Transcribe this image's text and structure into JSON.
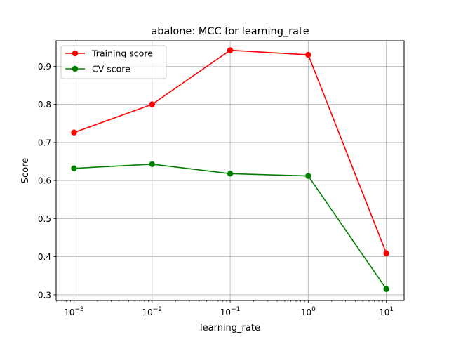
{
  "chart_data": {
    "type": "line",
    "title": "abalone: MCC for learning_rate",
    "xlabel": "learning_rate",
    "ylabel": "Score",
    "x_scale": "log",
    "x": [
      0.001,
      0.01,
      0.1,
      1,
      10
    ],
    "x_tick_labels": [
      {
        "base": "10",
        "exp": "−3"
      },
      {
        "base": "10",
        "exp": "−2"
      },
      {
        "base": "10",
        "exp": "−1"
      },
      {
        "base": "10",
        "exp": "0"
      },
      {
        "base": "10",
        "exp": "1"
      }
    ],
    "y_ticks": [
      "0.3",
      "0.4",
      "0.5",
      "0.6",
      "0.7",
      "0.8",
      "0.9"
    ],
    "xlim": [
      0.00059,
      16.9
    ],
    "ylim": [
      0.285,
      0.967
    ],
    "grid": true,
    "legend_position": "upper-left",
    "series": [
      {
        "name": "Training score",
        "color": "#ff0000",
        "values": [
          0.726,
          0.8,
          0.942,
          0.93,
          0.409
        ]
      },
      {
        "name": "CV score",
        "color": "#008000",
        "values": [
          0.632,
          0.643,
          0.618,
          0.612,
          0.315
        ]
      }
    ]
  }
}
